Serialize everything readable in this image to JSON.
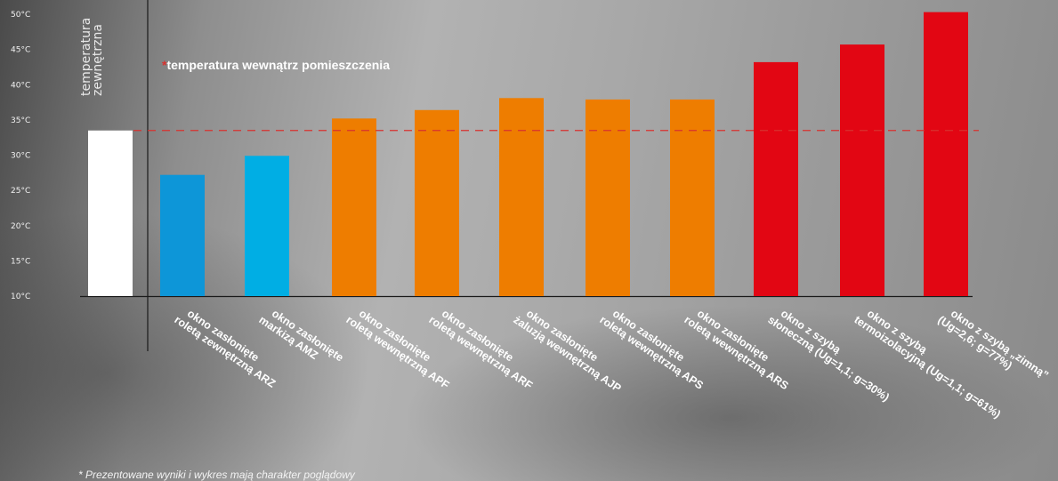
{
  "chart_data": {
    "type": "bar",
    "ylabel": [
      "temperatura",
      "zewnętrzna"
    ],
    "ylim": [
      10,
      50
    ],
    "yticks": [
      "50°C",
      "45°C",
      "40°C",
      "35°C",
      "30°C",
      "25°C",
      "20°C",
      "15°C",
      "10°C"
    ],
    "ytick_values": [
      50,
      45,
      40,
      35,
      30,
      25,
      20,
      15,
      10
    ],
    "reference_line": {
      "value": 33.5,
      "color": "#d8322f",
      "label_star": "*",
      "label": "temperatura wewnątrz pomieszczenia"
    },
    "categories": [
      {
        "lines": []
      },
      {
        "lines": [
          "okno zasłonięte",
          "roletą zewnętrzną ARZ"
        ]
      },
      {
        "lines": [
          "okno zasłonięte",
          "markizą AMZ"
        ]
      },
      {
        "lines": [
          "okno zasłonięte",
          "roletą wewnętrzną APF"
        ]
      },
      {
        "lines": [
          "okno zasłonięte",
          "roletą wewnętrzną ARF"
        ]
      },
      {
        "lines": [
          "okno zasłonięte",
          "żaluzją wewnętrzną AJP"
        ]
      },
      {
        "lines": [
          "okno zasłonięte",
          "roletą wewnętrzną APS"
        ]
      },
      {
        "lines": [
          "okno zasłonięte",
          "roletą wewnętrzną ARS"
        ]
      },
      {
        "lines": [
          "okno z szybą",
          "słoneczną (Ug=1,1; g=30%)"
        ]
      },
      {
        "lines": [
          "okno z szybą",
          "termoizolacyjną (Ug=1,1; g=61%)"
        ]
      },
      {
        "lines": [
          "okno z szybą „zimną”",
          "(Ug=2,6; g=77%)"
        ]
      }
    ],
    "values": [
      33.5,
      27.2,
      29.9,
      35.2,
      36.4,
      38.1,
      37.9,
      37.9,
      43.2,
      45.7,
      50.3
    ],
    "colors": [
      "#ffffff",
      "#0d96d8",
      "#00aee4",
      "#ee7d00",
      "#ee7d00",
      "#ee7d00",
      "#ee7d00",
      "#ee7d00",
      "#e20613",
      "#e20613",
      "#e20613"
    ],
    "grid": false
  },
  "footnote": "* Prezentowane wyniki i wykres mają charakter poglądowy"
}
